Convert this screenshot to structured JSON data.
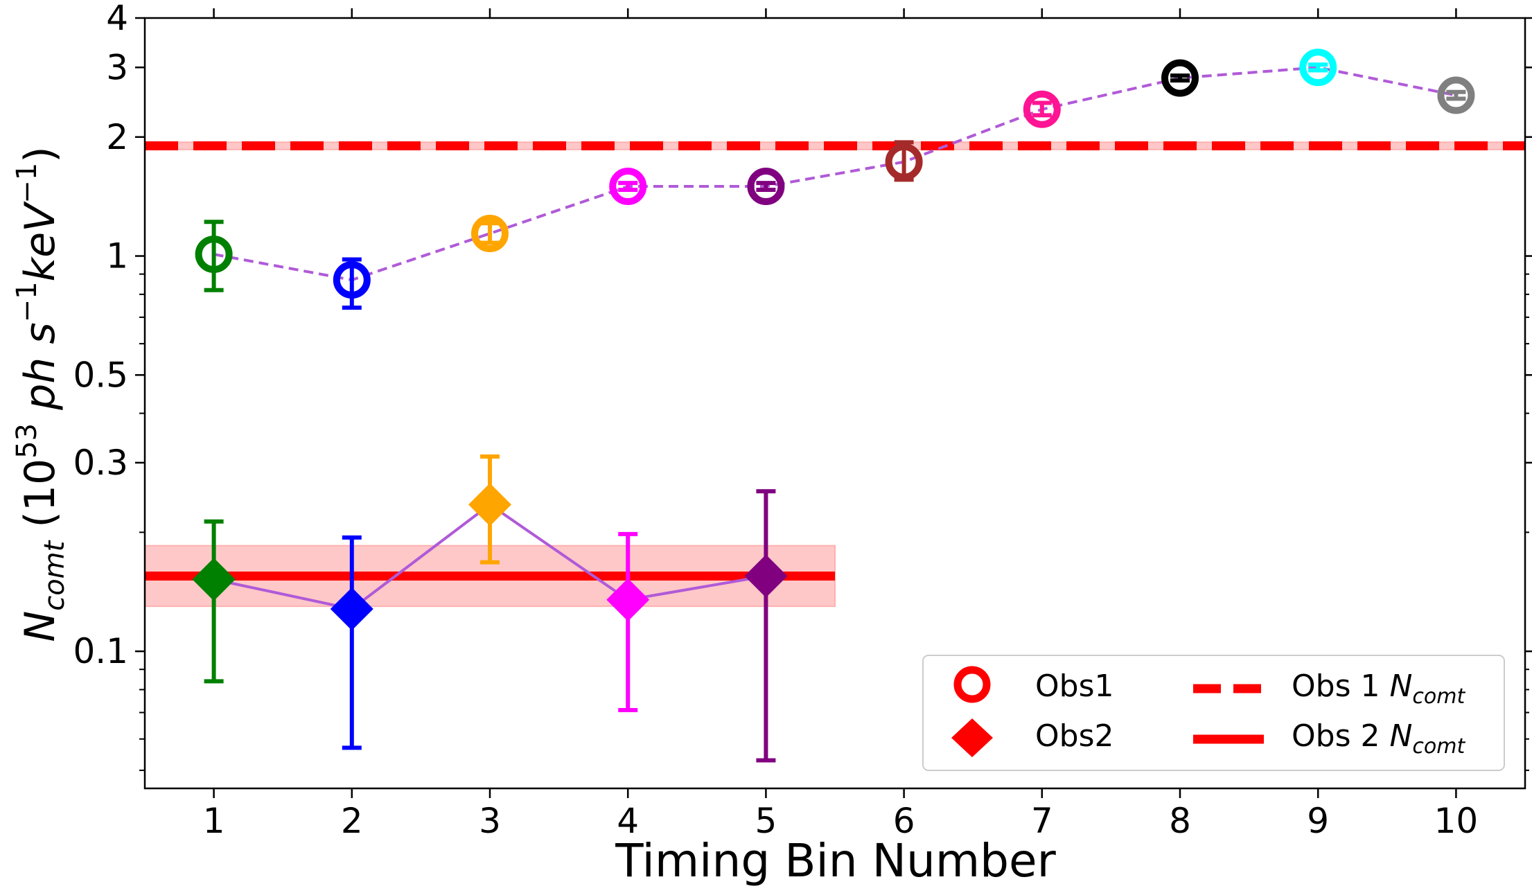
{
  "chart_data": {
    "type": "scatter",
    "xlabel": "Timing Bin Number",
    "ylabel": {
      "main": "N",
      "main_sub": "comt",
      "base": " (10",
      "base_exp": "53",
      "unit_ph": " ph s",
      "unit_s_exp": "−1",
      "unit_kev": "keV",
      "unit_kev_exp": "−1",
      "close": ")"
    },
    "xlim": [
      0.5,
      10.5
    ],
    "ylim": [
      0.045,
      4.0
    ],
    "yscale": "log",
    "x_ticks": [
      1,
      2,
      3,
      4,
      5,
      6,
      7,
      8,
      9,
      10
    ],
    "y_ticks": [
      {
        "value": 0.1,
        "label": "0.1"
      },
      {
        "value": 0.3,
        "label": "0.3"
      },
      {
        "value": 0.5,
        "label": "0.5"
      },
      {
        "value": 1,
        "label": "1"
      },
      {
        "value": 2,
        "label": "2"
      },
      {
        "value": 3,
        "label": "3"
      },
      {
        "value": 4,
        "label": "4"
      }
    ],
    "y_minor_ticks": [
      0.05,
      0.06,
      0.07,
      0.08,
      0.09,
      0.2,
      0.4,
      0.6,
      0.7,
      0.8,
      0.9
    ],
    "point_colors": [
      "#008000",
      "#0000ff",
      "#ffa500",
      "#ff00ff",
      "#800080",
      "#a52a2a",
      "#ff1493",
      "#000000",
      "#00ffff",
      "#808080"
    ],
    "connector_color": "#b05ad8",
    "series": [
      {
        "name": "Obs1",
        "marker": "open-circle",
        "line": "dashed",
        "x": [
          1,
          2,
          3,
          4,
          5,
          6,
          7,
          8,
          9,
          10
        ],
        "y": [
          1.01,
          0.87,
          1.14,
          1.5,
          1.5,
          1.73,
          2.35,
          2.82,
          3.0,
          2.55
        ],
        "err_low": [
          0.82,
          0.74,
          1.08,
          1.47,
          1.47,
          1.56,
          2.27,
          2.78,
          2.95,
          2.5
        ],
        "err_high": [
          1.22,
          0.98,
          1.21,
          1.53,
          1.53,
          1.94,
          2.44,
          2.86,
          3.05,
          2.6
        ]
      },
      {
        "name": "Obs2",
        "marker": "diamond",
        "line": "solid",
        "x": [
          1,
          2,
          3,
          4,
          5
        ],
        "y": [
          0.152,
          0.128,
          0.235,
          0.135,
          0.155
        ],
        "err_low": [
          0.084,
          0.057,
          0.168,
          0.071,
          0.053
        ],
        "err_high": [
          0.213,
          0.194,
          0.311,
          0.198,
          0.254
        ]
      }
    ],
    "reference_lines": [
      {
        "name": "Obs 1 N_comt",
        "value": 1.9,
        "band": [
          1.86,
          1.94
        ],
        "style": "dashed",
        "x_extent": [
          0.5,
          10.5
        ],
        "color": "#ff0000"
      },
      {
        "name": "Obs 2 N_comt",
        "value": 0.155,
        "band": [
          0.13,
          0.185
        ],
        "style": "solid",
        "x_extent": [
          0.5,
          5.5
        ],
        "color": "#ff0000"
      }
    ],
    "band_color": "#ffb0b0",
    "legend": {
      "position": "lower right",
      "entries": [
        {
          "label": "Obs1",
          "symbol": "open-circle"
        },
        {
          "label": "Obs 1 ",
          "symbol": "dashed-line",
          "math": "N",
          "math_sub": "comt"
        },
        {
          "label": "Obs2",
          "symbol": "diamond"
        },
        {
          "label": "Obs 2 ",
          "symbol": "solid-line",
          "math": "N",
          "math_sub": "comt"
        }
      ]
    }
  }
}
